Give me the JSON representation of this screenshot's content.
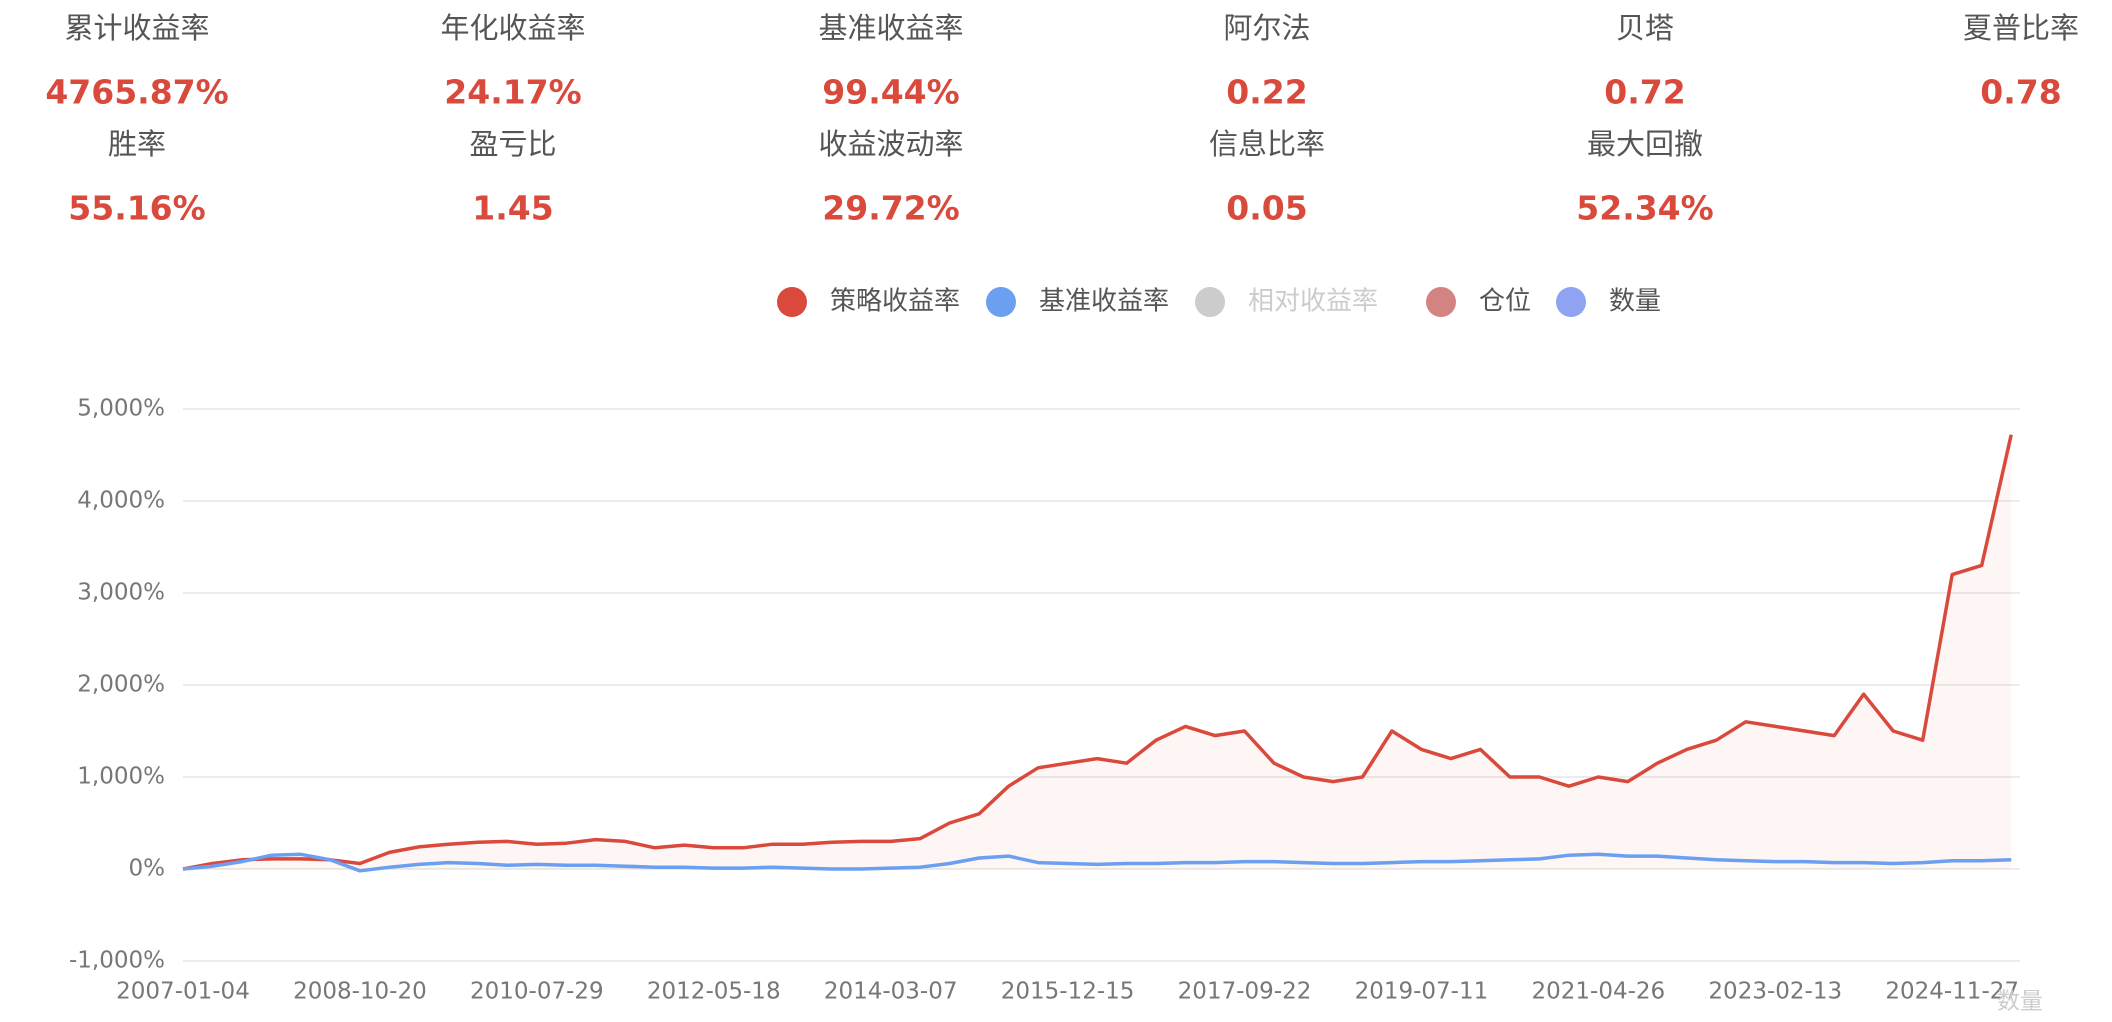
{
  "metrics": [
    {
      "label": "累计收益率",
      "value": "4765.87%"
    },
    {
      "label": "年化收益率",
      "value": "24.17%"
    },
    {
      "label": "基准收益率",
      "value": "99.44%"
    },
    {
      "label": "阿尔法",
      "value": "0.22"
    },
    {
      "label": "贝塔",
      "value": "0.72"
    },
    {
      "label": "夏普比率",
      "value": "0.78"
    },
    {
      "label": "胜率",
      "value": "55.16%"
    },
    {
      "label": "盈亏比",
      "value": "1.45"
    },
    {
      "label": "收益波动率",
      "value": "29.72%"
    },
    {
      "label": "信息比率",
      "value": "0.05"
    },
    {
      "label": "最大回撤",
      "value": "52.34%"
    }
  ],
  "chart_data": {
    "type": "line",
    "categories": [
      "2007-01-04",
      null,
      null,
      null,
      null,
      null,
      "2008-10-20",
      null,
      null,
      null,
      null,
      null,
      "2010-07-29",
      null,
      null,
      null,
      null,
      null,
      "2012-05-18",
      null,
      null,
      null,
      null,
      null,
      "2014-03-07",
      null,
      null,
      null,
      null,
      null,
      "2015-12-15",
      null,
      null,
      null,
      null,
      null,
      "2017-09-22",
      null,
      null,
      null,
      null,
      null,
      "2019-07-11",
      null,
      null,
      null,
      null,
      null,
      "2021-04-26",
      null,
      null,
      null,
      null,
      null,
      "2023-02-13",
      null,
      null,
      null,
      null,
      null,
      "2024-11-27",
      null,
      null
    ],
    "series": [
      {
        "name": "策略收益率",
        "color": "#d9493c",
        "values": [
          0,
          60,
          100,
          110,
          110,
          100,
          60,
          180,
          240,
          270,
          290,
          300,
          270,
          280,
          320,
          300,
          230,
          260,
          230,
          230,
          270,
          270,
          290,
          300,
          300,
          330,
          500,
          600,
          900,
          1100,
          1150,
          1200,
          1150,
          1400,
          1550,
          1450,
          1500,
          1150,
          1000,
          950,
          1000,
          1500,
          1300,
          1200,
          1300,
          1000,
          1000,
          900,
          1000,
          950,
          1150,
          1300,
          1400,
          1600,
          1550,
          1500,
          1450,
          1900,
          1500,
          1400,
          3200,
          3300,
          4720
        ]
      },
      {
        "name": "基准收益率",
        "color": "#6b9ff0",
        "values": [
          0,
          30,
          80,
          150,
          160,
          100,
          -20,
          20,
          50,
          70,
          60,
          40,
          50,
          40,
          40,
          30,
          20,
          20,
          10,
          10,
          20,
          10,
          0,
          0,
          10,
          20,
          60,
          120,
          140,
          70,
          60,
          50,
          60,
          60,
          70,
          70,
          80,
          80,
          70,
          60,
          60,
          70,
          80,
          80,
          90,
          100,
          110,
          150,
          160,
          140,
          140,
          120,
          100,
          90,
          80,
          80,
          70,
          70,
          60,
          70,
          90,
          90,
          100
        ]
      }
    ],
    "legend_extra": [
      {
        "name": "相对收益率",
        "color": "#cccccc"
      },
      {
        "name": "仓位",
        "color": "#d48383"
      },
      {
        "name": "数量",
        "color": "#8ea3f2"
      }
    ],
    "y2_label": "数量",
    "ylim": [
      -1000,
      5000
    ],
    "yticks": [
      {
        "value": -1000,
        "label": "-1,000%"
      },
      {
        "value": 0,
        "label": "0%"
      },
      {
        "value": 1000,
        "label": "1,000%"
      },
      {
        "value": 2000,
        "label": "2,000%"
      },
      {
        "value": 3000,
        "label": "3,000%"
      },
      {
        "value": 4000,
        "label": "4,000%"
      },
      {
        "value": 5000,
        "label": "5,000%"
      }
    ],
    "grid": true
  }
}
